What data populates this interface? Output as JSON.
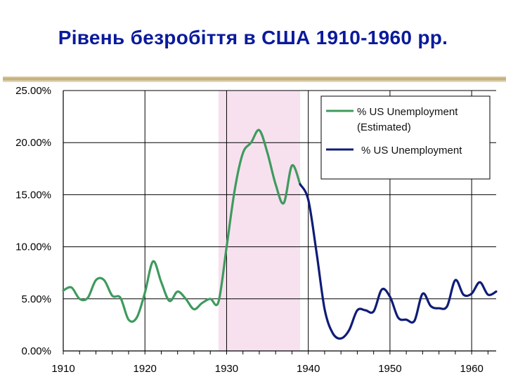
{
  "slide": {
    "title": "Рівень безробіття в США 1910-1960 рр."
  },
  "colors": {
    "title": "#0a1a9c",
    "estimated": "#3f9a5e",
    "actual": "#0f1c77",
    "highlight": "#f7e1ef"
  },
  "chart_data": {
    "type": "line",
    "title": "",
    "xlabel": "",
    "ylabel": "",
    "xlim": [
      1910,
      1963
    ],
    "ylim": [
      0,
      25
    ],
    "grid": true,
    "x_ticks": [
      "1910",
      "1920",
      "1930",
      "1940",
      "1950",
      "1960"
    ],
    "y_ticks": [
      "0.00%",
      "5.00%",
      "10.00%",
      "15.00%",
      "20.00%",
      "25.00%"
    ],
    "y_tick_values": [
      0,
      5,
      10,
      15,
      20,
      25
    ],
    "x_tick_values": [
      1910,
      1920,
      1930,
      1940,
      1950,
      1960
    ],
    "highlight_range": [
      1929,
      1939
    ],
    "legend": {
      "position": "top-right",
      "entries": [
        {
          "label_line1": "% US Unemployment",
          "label_line2": "(Estimated)",
          "color": "#3f9a5e"
        },
        {
          "label_line1": "% US Unemployment",
          "label_line2": "",
          "color": "#0f1c77"
        }
      ]
    },
    "series": [
      {
        "name": "% US Unemployment (Estimated)",
        "color": "#3f9a5e",
        "x": [
          1910,
          1911,
          1912,
          1913,
          1914,
          1915,
          1916,
          1917,
          1918,
          1919,
          1920,
          1921,
          1922,
          1923,
          1924,
          1925,
          1926,
          1927,
          1928,
          1929,
          1930,
          1931,
          1932,
          1933,
          1934,
          1935,
          1936,
          1937,
          1938,
          1939
        ],
        "y": [
          5.8,
          6.1,
          5.0,
          5.1,
          6.8,
          6.8,
          5.3,
          5.1,
          3.0,
          3.2,
          5.6,
          8.6,
          6.6,
          4.8,
          5.7,
          5.0,
          4.0,
          4.6,
          5.0,
          4.7,
          10.0,
          15.5,
          19.0,
          20.0,
          21.2,
          19.0,
          16.0,
          14.2,
          17.8,
          16.0
        ]
      },
      {
        "name": "% US Unemployment",
        "color": "#0f1c77",
        "x": [
          1939,
          1940,
          1941,
          1942,
          1943,
          1944,
          1945,
          1946,
          1947,
          1948,
          1949,
          1950,
          1951,
          1952,
          1953,
          1954,
          1955,
          1956,
          1957,
          1958,
          1959,
          1960,
          1961,
          1962,
          1963
        ],
        "y": [
          16.0,
          14.5,
          9.5,
          4.0,
          1.7,
          1.2,
          2.0,
          3.9,
          3.9,
          3.8,
          5.9,
          5.2,
          3.2,
          3.0,
          2.9,
          5.5,
          4.3,
          4.1,
          4.3,
          6.8,
          5.4,
          5.5,
          6.6,
          5.4,
          5.7
        ]
      }
    ]
  }
}
